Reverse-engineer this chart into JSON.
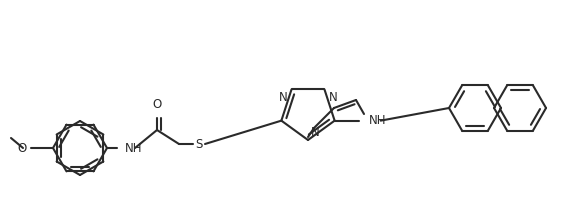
{
  "bg": "#ffffff",
  "lc": "#2a2a2a",
  "fs": 8.5,
  "lw": 1.5,
  "figsize": [
    5.86,
    2.1
  ],
  "dpi": 100,
  "xlim": [
    0,
    586
  ],
  "ylim": [
    0,
    210
  ]
}
